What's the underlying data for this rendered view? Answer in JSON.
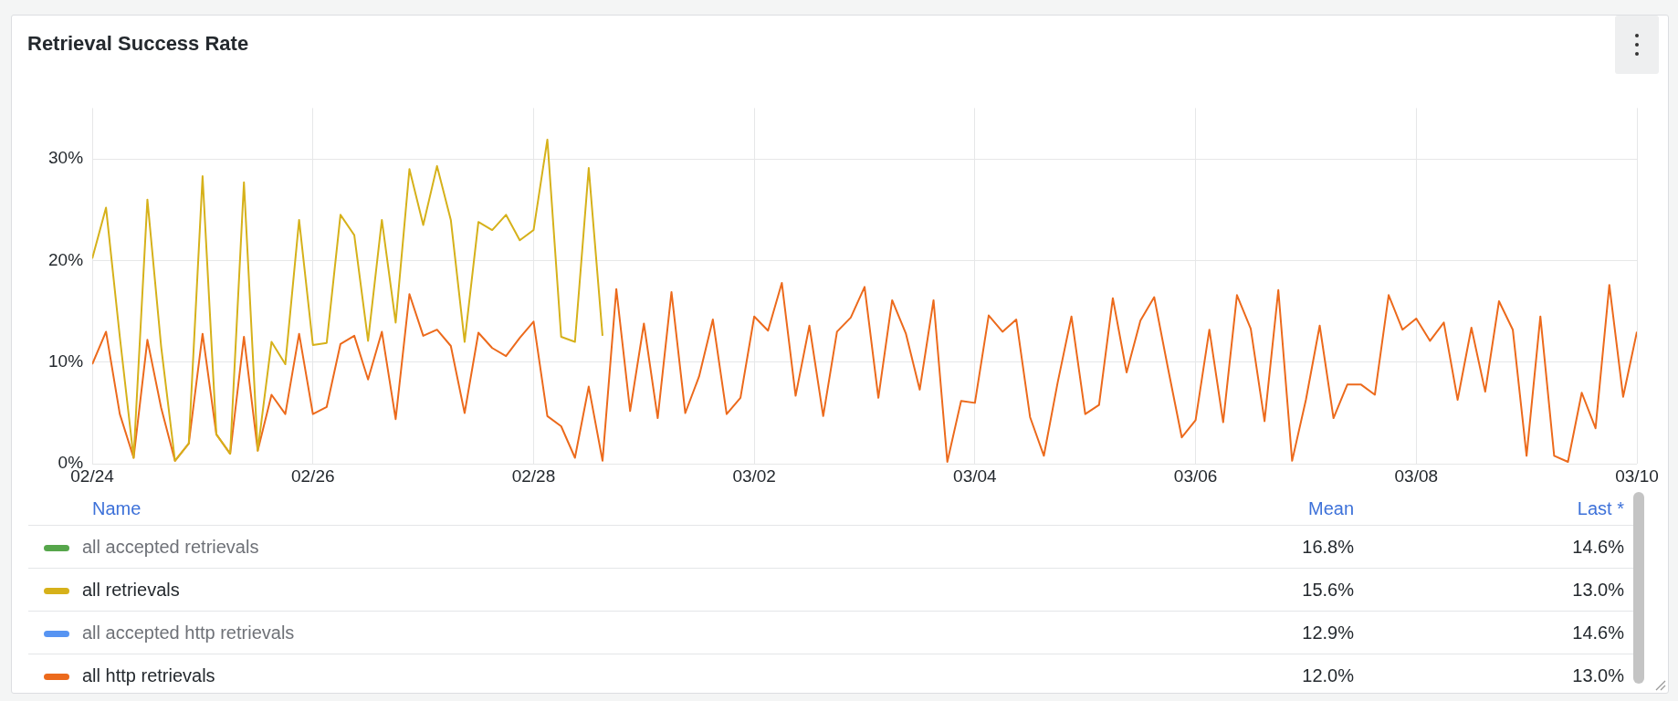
{
  "chart_data": {
    "type": "line",
    "title": "Retrieval Success Rate",
    "x": [
      "--02-24T00:00",
      "--02-24T03:00",
      "--02-24T06:00",
      "--02-24T09:00",
      "--02-24T12:00",
      "--02-24T15:00",
      "--02-24T18:00",
      "--02-24T21:00",
      "--02-25T00:00",
      "--02-25T03:00",
      "--02-25T06:00",
      "--02-25T09:00",
      "--02-25T12:00",
      "--02-25T15:00",
      "--02-25T18:00",
      "--02-25T21:00",
      "--02-26T00:00",
      "--02-26T03:00",
      "--02-26T06:00",
      "--02-26T09:00",
      "--02-26T12:00",
      "--02-26T15:00",
      "--02-26T18:00",
      "--02-26T21:00",
      "--02-27T00:00",
      "--02-27T03:00",
      "--02-27T06:00",
      "--02-27T09:00",
      "--02-27T12:00",
      "--02-27T15:00",
      "--02-27T18:00",
      "--02-27T21:00",
      "--02-28T00:00",
      "--02-28T03:00",
      "--02-28T06:00",
      "--02-28T09:00",
      "--02-28T12:00",
      "--02-28T15:00",
      "--02-28T18:00",
      "--02-28T21:00",
      "--03-01T00:00",
      "--03-01T03:00",
      "--03-01T06:00",
      "--03-01T09:00",
      "--03-01T12:00",
      "--03-01T15:00",
      "--03-01T18:00",
      "--03-01T21:00",
      "--03-02T00:00",
      "--03-02T03:00",
      "--03-02T06:00",
      "--03-02T09:00",
      "--03-02T12:00",
      "--03-02T15:00",
      "--03-02T18:00",
      "--03-02T21:00",
      "--03-03T00:00",
      "--03-03T03:00",
      "--03-03T06:00",
      "--03-03T09:00",
      "--03-03T12:00",
      "--03-03T15:00",
      "--03-03T18:00",
      "--03-03T21:00",
      "--03-04T00:00",
      "--03-04T03:00",
      "--03-04T06:00",
      "--03-04T09:00",
      "--03-04T12:00",
      "--03-04T15:00",
      "--03-04T18:00",
      "--03-04T21:00",
      "--03-05T00:00",
      "--03-05T03:00",
      "--03-05T06:00",
      "--03-05T09:00",
      "--03-05T12:00",
      "--03-05T15:00",
      "--03-05T18:00",
      "--03-05T21:00",
      "--03-06T00:00",
      "--03-06T03:00",
      "--03-06T06:00",
      "--03-06T09:00",
      "--03-06T12:00",
      "--03-06T15:00",
      "--03-06T18:00",
      "--03-06T21:00",
      "--03-07T00:00",
      "--03-07T03:00",
      "--03-07T06:00",
      "--03-07T09:00",
      "--03-07T12:00",
      "--03-07T15:00",
      "--03-07T18:00",
      "--03-07T21:00",
      "--03-08T00:00",
      "--03-08T03:00",
      "--03-08T06:00",
      "--03-08T09:00",
      "--03-08T12:00",
      "--03-08T15:00",
      "--03-08T18:00",
      "--03-08T21:00",
      "--03-09T00:00",
      "--03-09T03:00",
      "--03-09T06:00",
      "--03-09T09:00",
      "--03-09T12:00",
      "--03-09T15:00",
      "--03-09T18:00",
      "--03-09T21:00",
      "--03-10T00:00"
    ],
    "series": [
      {
        "name": "all accepted retrievals",
        "color": "#56a64b",
        "values": [
          null,
          null,
          null,
          null,
          null,
          null,
          null,
          null,
          null,
          null,
          null,
          null,
          null,
          null,
          null,
          null,
          null,
          null,
          null,
          null,
          null,
          null,
          null,
          null,
          null,
          null,
          null,
          null,
          null,
          null,
          null,
          null,
          null,
          null,
          null,
          null,
          null,
          null,
          null,
          null,
          null,
          null,
          null,
          null,
          null,
          null,
          null,
          null,
          null,
          null,
          null,
          null,
          null,
          null,
          null,
          null,
          null,
          null,
          null,
          null,
          null,
          null,
          null,
          null,
          null,
          null,
          null,
          null,
          null,
          null,
          null,
          null,
          null,
          null,
          null,
          null,
          null,
          null,
          null,
          null,
          null,
          null,
          null,
          null,
          null,
          null,
          null,
          null,
          null,
          null,
          null,
          null,
          null,
          null,
          null,
          null,
          null,
          null,
          null,
          null,
          null,
          null,
          null,
          null,
          null,
          null,
          null,
          null,
          null,
          null,
          null,
          null,
          null
        ]
      },
      {
        "name": "all retrievals",
        "color": "#d6b11a",
        "values": [
          20.2,
          25.2,
          12.5,
          0.6,
          26.0,
          11.5,
          0.3,
          2.0,
          28.3,
          2.9,
          1.0,
          27.7,
          1.3,
          12.0,
          9.8,
          24.0,
          11.7,
          11.9,
          24.5,
          22.5,
          12.1,
          24.0,
          13.9,
          29.0,
          23.5,
          29.3,
          24.0,
          12.0,
          23.8,
          23.0,
          24.5,
          22.0,
          23.0,
          31.9,
          12.5,
          12.0,
          29.1,
          12.6,
          null,
          null,
          null,
          null,
          null,
          null,
          null,
          null,
          null,
          null,
          null,
          null,
          null,
          null,
          null,
          null,
          null,
          null,
          null,
          null,
          null,
          null,
          null,
          null,
          null,
          null,
          null,
          null,
          null,
          null,
          null,
          null,
          null,
          null,
          null,
          null,
          null,
          null,
          null,
          null,
          null,
          null,
          null,
          null,
          null,
          null,
          null,
          null,
          null,
          null,
          null,
          null,
          null,
          null,
          null,
          null,
          null,
          null,
          null,
          null,
          null,
          null,
          null,
          null,
          null,
          null,
          null,
          null,
          null,
          null,
          null,
          null,
          null,
          null,
          null
        ]
      },
      {
        "name": "all accepted http retrievals",
        "color": "#5794f2",
        "values": [
          null,
          null,
          null,
          null,
          null,
          null,
          null,
          null,
          null,
          null,
          null,
          null,
          null,
          null,
          null,
          null,
          null,
          null,
          null,
          null,
          null,
          null,
          null,
          null,
          null,
          null,
          null,
          null,
          null,
          null,
          null,
          null,
          null,
          null,
          null,
          null,
          null,
          null,
          null,
          null,
          null,
          null,
          null,
          null,
          null,
          null,
          null,
          null,
          null,
          null,
          null,
          null,
          null,
          null,
          null,
          null,
          null,
          null,
          null,
          null,
          null,
          null,
          null,
          null,
          null,
          null,
          null,
          null,
          null,
          null,
          null,
          null,
          null,
          null,
          null,
          null,
          null,
          null,
          null,
          null,
          null,
          null,
          null,
          null,
          null,
          null,
          null,
          null,
          null,
          null,
          null,
          null,
          null,
          null,
          null,
          null,
          null,
          null,
          null,
          null,
          null,
          null,
          null,
          null,
          null,
          null,
          null,
          null,
          null,
          null,
          null,
          null,
          null
        ]
      },
      {
        "name": "all http retrievals",
        "color": "#ec6a1c",
        "values": [
          9.8,
          13.0,
          4.9,
          0.6,
          12.2,
          5.5,
          0.3,
          2.0,
          12.8,
          2.9,
          1.0,
          12.5,
          1.3,
          6.8,
          4.9,
          12.8,
          4.9,
          5.6,
          11.8,
          12.6,
          8.3,
          13.0,
          4.4,
          16.7,
          12.6,
          13.2,
          11.6,
          5.0,
          12.9,
          11.4,
          10.6,
          12.4,
          14.0,
          4.7,
          3.7,
          0.6,
          7.6,
          0.3,
          17.2,
          5.2,
          13.8,
          4.5,
          16.9,
          5.0,
          8.6,
          14.2,
          4.9,
          6.5,
          14.5,
          13.1,
          17.8,
          6.7,
          13.6,
          4.7,
          13.0,
          14.4,
          17.4,
          6.5,
          16.1,
          12.8,
          7.3,
          16.1,
          0.2,
          6.2,
          6.0,
          14.6,
          13.0,
          14.2,
          4.6,
          0.8,
          8.0,
          14.5,
          4.9,
          5.8,
          16.3,
          9.0,
          14.1,
          16.4,
          9.4,
          2.6,
          4.3,
          13.2,
          4.1,
          16.6,
          13.3,
          4.2,
          17.1,
          0.3,
          6.3,
          13.6,
          4.5,
          7.8,
          7.8,
          6.8,
          16.6,
          13.2,
          14.3,
          12.1,
          13.9,
          6.3,
          13.4,
          7.1,
          16.0,
          13.2,
          0.8,
          14.5,
          0.8,
          0.2,
          7.0,
          3.5,
          17.6,
          6.6,
          13.0
        ]
      }
    ],
    "xlim": [
      "--02-24T00:00",
      "--03-10T00:00"
    ],
    "xticks": [
      {
        "value": "--02-24",
        "label": "02/24"
      },
      {
        "value": "--02-26",
        "label": "02/26"
      },
      {
        "value": "--02-28",
        "label": "02/28"
      },
      {
        "value": "--03-02",
        "label": "03/02"
      },
      {
        "value": "--03-04",
        "label": "03/04"
      },
      {
        "value": "--03-06",
        "label": "03/06"
      },
      {
        "value": "--03-08",
        "label": "03/08"
      },
      {
        "value": "--03-10",
        "label": "03/10"
      }
    ],
    "ylim": [
      0,
      35
    ],
    "yticks": [
      {
        "value": 0,
        "label": "0%"
      },
      {
        "value": 10,
        "label": "10%"
      },
      {
        "value": 20,
        "label": "20%"
      },
      {
        "value": 30,
        "label": "30%"
      }
    ],
    "grid": true,
    "legend": "bottom",
    "marker": "none",
    "line_style": "solid",
    "annotations": [
      "Name",
      "Mean",
      "Last *",
      "16.8%",
      "14.6%",
      "15.6%",
      "13.0%",
      "12.9%",
      "14.6%",
      "12.0%",
      "13.0%"
    ]
  }
}
